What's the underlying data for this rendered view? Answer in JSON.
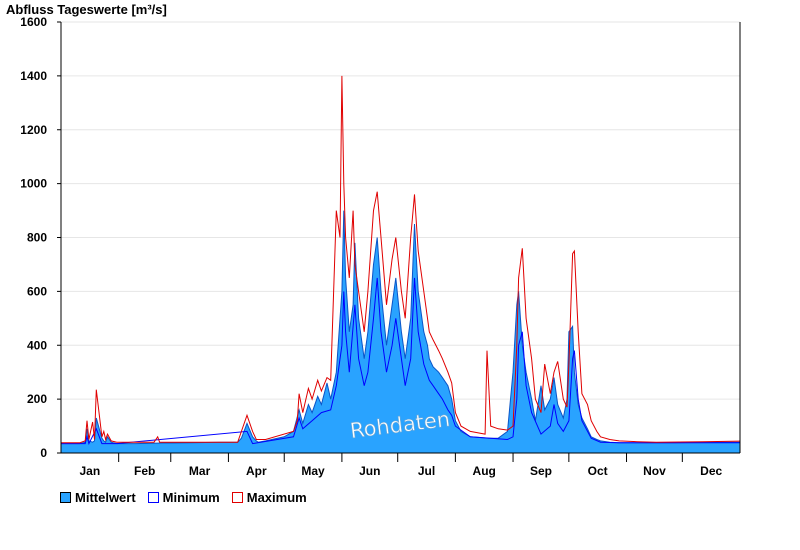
{
  "chart_data": {
    "type": "area",
    "title": "Abfluss Tageswerte [m³/s]",
    "watermark": "Rohdaten",
    "ylim": [
      0,
      1600
    ],
    "yticks": [
      0,
      200,
      400,
      600,
      800,
      1000,
      1200,
      1400,
      1600
    ],
    "xlim": [
      0,
      365
    ],
    "months": [
      {
        "label": "Jan",
        "start": 0,
        "days": 31
      },
      {
        "label": "Feb",
        "start": 31,
        "days": 28
      },
      {
        "label": "Mar",
        "start": 59,
        "days": 31
      },
      {
        "label": "Apr",
        "start": 90,
        "days": 30
      },
      {
        "label": "May",
        "start": 120,
        "days": 31
      },
      {
        "label": "Jun",
        "start": 151,
        "days": 30
      },
      {
        "label": "Jul",
        "start": 181,
        "days": 31
      },
      {
        "label": "Aug",
        "start": 212,
        "days": 31
      },
      {
        "label": "Sep",
        "start": 243,
        "days": 30
      },
      {
        "label": "Oct",
        "start": 273,
        "days": 31
      },
      {
        "label": "Nov",
        "start": 304,
        "days": 30
      },
      {
        "label": "Dec",
        "start": 334,
        "days": 31
      }
    ],
    "grid": true,
    "legend_position": "bottom-left",
    "series": [
      {
        "name": "Mittelwert",
        "color": "#29a3ff",
        "x": [
          0,
          5,
          10,
          13,
          14,
          15,
          17,
          18,
          19,
          22,
          23,
          24,
          25,
          27,
          30,
          40,
          55,
          59,
          70,
          85,
          95,
          97,
          100,
          103,
          105,
          106,
          110,
          120,
          125,
          128,
          130,
          133,
          135,
          138,
          140,
          143,
          145,
          148,
          151,
          152,
          153,
          155,
          157,
          158,
          160,
          163,
          165,
          168,
          170,
          172,
          175,
          178,
          180,
          183,
          185,
          188,
          190,
          192,
          195,
          197,
          198,
          200,
          203,
          205,
          208,
          210,
          212,
          215,
          220,
          230,
          235,
          240,
          243,
          245,
          246,
          248,
          250,
          253,
          255,
          258,
          260,
          263,
          265,
          267,
          270,
          272,
          273,
          275,
          276,
          278,
          280,
          283,
          285,
          288,
          290,
          295,
          300,
          310,
          320,
          330,
          345,
          365
        ],
        "y": [
          35,
          35,
          35,
          40,
          90,
          45,
          40,
          45,
          130,
          55,
          45,
          40,
          60,
          40,
          35,
          35,
          37,
          37,
          38,
          40,
          40,
          55,
          110,
          60,
          45,
          40,
          45,
          60,
          80,
          160,
          110,
          180,
          150,
          210,
          180,
          260,
          200,
          300,
          600,
          900,
          650,
          450,
          550,
          780,
          500,
          350,
          450,
          700,
          800,
          600,
          400,
          550,
          650,
          450,
          350,
          500,
          850,
          600,
          450,
          400,
          350,
          320,
          300,
          280,
          250,
          200,
          120,
          80,
          60,
          55,
          55,
          80,
          300,
          550,
          600,
          400,
          300,
          200,
          120,
          250,
          160,
          200,
          280,
          180,
          130,
          200,
          450,
          470,
          300,
          180,
          130,
          90,
          60,
          50,
          45,
          40,
          38,
          38,
          38,
          38,
          40,
          40
        ]
      },
      {
        "name": "Minimum",
        "color": "#0000ff",
        "x": [
          0,
          13,
          14,
          15,
          19,
          22,
          30,
          100,
          103,
          125,
          128,
          130,
          135,
          140,
          145,
          148,
          151,
          152,
          153,
          155,
          158,
          160,
          163,
          165,
          168,
          170,
          172,
          175,
          178,
          180,
          183,
          185,
          188,
          190,
          192,
          195,
          198,
          200,
          203,
          205,
          208,
          210,
          212,
          220,
          240,
          243,
          245,
          246,
          248,
          250,
          253,
          258,
          263,
          265,
          267,
          270,
          273,
          275,
          276,
          278,
          280,
          285,
          290,
          300,
          365
        ],
        "y": [
          35,
          35,
          60,
          35,
          90,
          35,
          35,
          80,
          35,
          60,
          130,
          90,
          120,
          150,
          160,
          250,
          400,
          600,
          450,
          300,
          550,
          350,
          250,
          300,
          500,
          650,
          450,
          300,
          400,
          500,
          350,
          250,
          350,
          650,
          450,
          330,
          270,
          250,
          220,
          200,
          160,
          140,
          100,
          60,
          50,
          60,
          200,
          400,
          450,
          250,
          150,
          70,
          100,
          180,
          110,
          80,
          120,
          350,
          380,
          200,
          120,
          55,
          40,
          38,
          38
        ]
      },
      {
        "name": "Maximum",
        "color": "#e00000",
        "x": [
          0,
          10,
          13,
          14,
          15,
          17,
          18,
          19,
          22,
          23,
          24,
          25,
          27,
          30,
          50,
          52,
          53,
          55,
          59,
          95,
          97,
          100,
          103,
          105,
          110,
          125,
          127,
          128,
          130,
          133,
          135,
          138,
          140,
          143,
          145,
          148,
          150,
          151,
          152,
          153,
          155,
          157,
          158,
          160,
          163,
          165,
          168,
          170,
          172,
          175,
          178,
          180,
          183,
          185,
          188,
          190,
          192,
          195,
          197,
          198,
          200,
          203,
          205,
          208,
          210,
          212,
          215,
          220,
          228,
          229,
          231,
          235,
          240,
          243,
          245,
          246,
          248,
          250,
          253,
          255,
          258,
          260,
          263,
          265,
          267,
          270,
          272,
          273,
          275,
          276,
          278,
          280,
          283,
          285,
          288,
          290,
          295,
          300,
          310,
          320,
          345,
          365
        ],
        "y": [
          38,
          38,
          45,
          120,
          50,
          115,
          50,
          235,
          60,
          80,
          50,
          70,
          45,
          40,
          40,
          60,
          40,
          40,
          40,
          40,
          80,
          140,
          80,
          50,
          50,
          80,
          120,
          220,
          150,
          240,
          200,
          270,
          230,
          280,
          270,
          900,
          800,
          1400,
          1000,
          800,
          650,
          900,
          700,
          600,
          450,
          600,
          900,
          970,
          800,
          550,
          720,
          800,
          600,
          500,
          800,
          960,
          750,
          600,
          500,
          450,
          420,
          380,
          350,
          300,
          260,
          150,
          100,
          80,
          70,
          380,
          100,
          90,
          85,
          100,
          400,
          650,
          760,
          500,
          350,
          200,
          150,
          330,
          220,
          300,
          340,
          200,
          170,
          330,
          740,
          750,
          450,
          220,
          180,
          120,
          80,
          60,
          50,
          45,
          42,
          40,
          42,
          44
        ]
      }
    ]
  },
  "legend": {
    "items": [
      {
        "label": "Mittelwert",
        "fill": "#29a3ff",
        "stroke": "#000000"
      },
      {
        "label": "Minimum",
        "fill": "#ffffff",
        "stroke": "#0000ff"
      },
      {
        "label": "Maximum",
        "fill": "#ffffff",
        "stroke": "#e00000"
      }
    ]
  }
}
